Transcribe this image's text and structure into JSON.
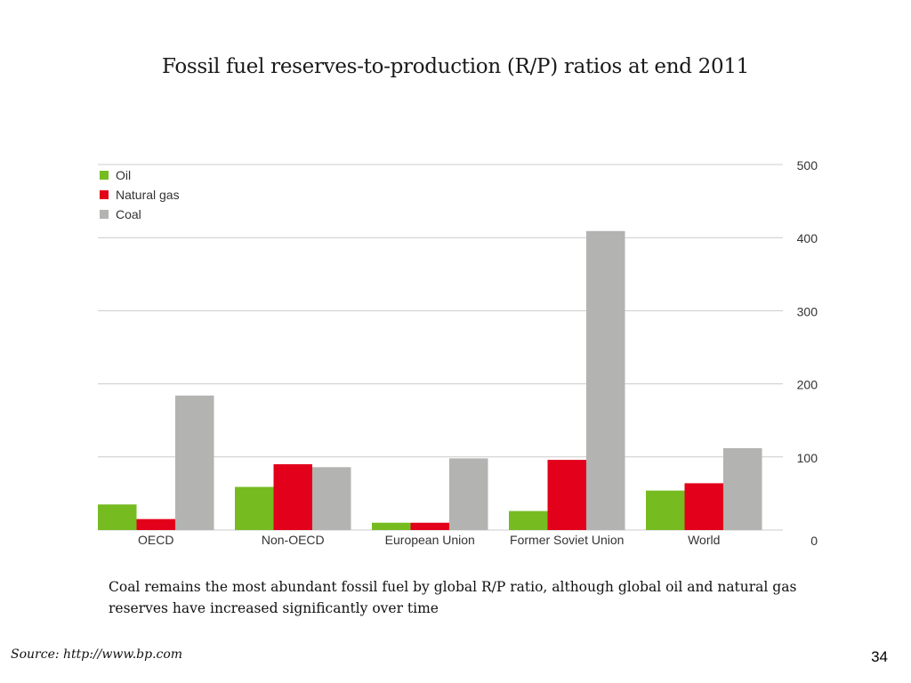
{
  "slide": {
    "title": "Fossil fuel reserves-to-production (R/P) ratios at end 2011",
    "caption": "Coal remains the most abundant fossil fuel by global R/P ratio, although global oil and natural gas reserves have increased significantly over time",
    "source": "Source: http://www.bp.com",
    "page_number": "34"
  },
  "chart_data": {
    "type": "bar",
    "categories": [
      "OECD",
      "Non-OECD",
      "European Union",
      "Former Soviet Union",
      "World"
    ],
    "series": [
      {
        "name": "Oil",
        "color": "#76bc21",
        "values": [
          35,
          59,
          10,
          26,
          54
        ]
      },
      {
        "name": "Natural gas",
        "color": "#e2001a",
        "values": [
          15,
          90,
          10,
          96,
          64
        ]
      },
      {
        "name": "Coal",
        "color": "#b3b3b2",
        "values": [
          184,
          86,
          98,
          409,
          112
        ]
      }
    ],
    "ylim": [
      0,
      500
    ],
    "yticks": [
      0,
      100,
      200,
      300,
      400,
      500
    ],
    "y_axis_side": "right",
    "grid": true,
    "legend_position": "top-left",
    "gridline_color": "#cccccc"
  }
}
